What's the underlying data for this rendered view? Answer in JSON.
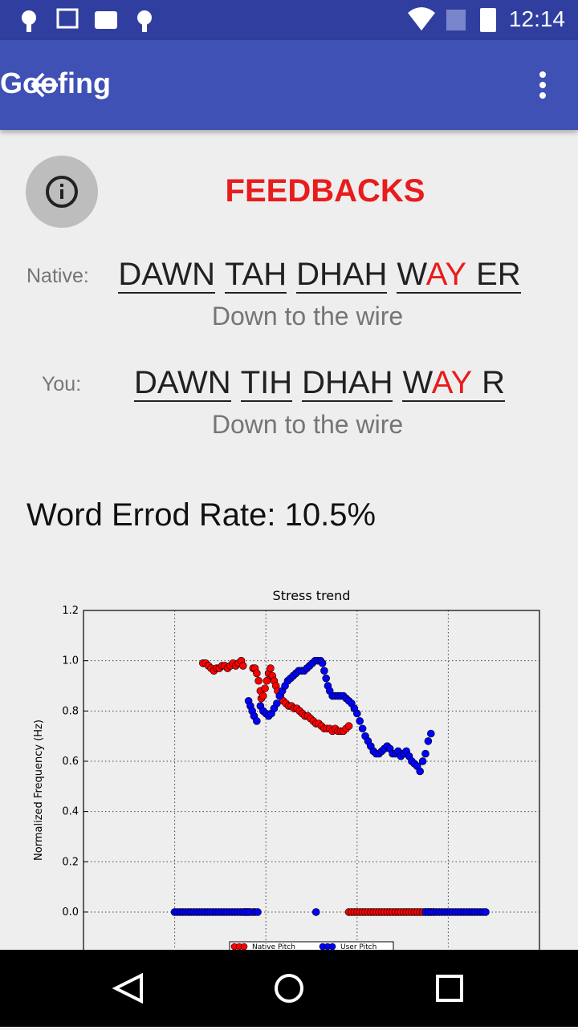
{
  "status_bar": {
    "time": "12:14"
  },
  "app_bar": {
    "title": "Goofing"
  },
  "feedback": {
    "heading": "FEEDBACKS",
    "phrases": [
      {
        "label": "Native:",
        "words": [
          "DAWN",
          "TAH",
          "DHAH"
        ],
        "last": {
          "start": "W",
          "stress": "AY",
          "end": "ER"
        },
        "sentence": "Down to the wire"
      },
      {
        "label": "You:",
        "words": [
          "DAWN",
          "TIH",
          "DHAH"
        ],
        "last": {
          "start": "W",
          "stress": "AY",
          "end": "R"
        },
        "sentence": "Down to the wire"
      }
    ],
    "word_error_rate": "Word Errod Rate: 10.5%"
  },
  "chart_data": {
    "type": "scatter",
    "title": "Stress trend",
    "y_label": "Normalized Frequency (Hz)",
    "xlim": [
      0,
      500
    ],
    "xticks": [
      0,
      100,
      200,
      300,
      400,
      500
    ],
    "ylim": [
      -0.2,
      1.2
    ],
    "yticks": [
      {
        "value": 0,
        "label": "0.0"
      },
      0.2,
      0.4,
      0.6,
      0.8,
      {
        "value": 1,
        "label": "1.0"
      },
      1.2
    ],
    "grid": true,
    "legend": "lower center",
    "series": [
      {
        "name": "Native Pitch",
        "color": "#ff0000",
        "x": [
          131,
          134,
          137,
          140,
          143,
          146,
          149,
          152,
          155,
          158,
          161,
          164,
          167,
          170,
          173,
          175,
          186,
          188,
          190,
          192,
          194,
          195,
          197,
          199,
          201,
          203,
          205,
          207,
          209,
          211,
          213,
          216,
          219,
          222,
          225,
          228,
          231,
          234,
          237,
          240,
          243,
          246,
          249,
          252,
          255,
          258,
          261,
          264,
          267,
          270,
          273,
          276,
          279,
          282,
          285,
          288,
          291,
          177,
          180,
          183,
          186,
          291,
          294,
          297,
          300,
          303,
          306,
          309,
          312,
          315,
          318,
          321,
          324,
          327,
          330,
          333,
          336,
          339,
          342,
          345,
          348,
          351,
          354,
          357,
          360,
          363,
          366,
          369,
          372,
          375,
          378,
          381,
          384
        ],
        "values": [
          0.99,
          0.99,
          0.98,
          0.97,
          0.96,
          0.97,
          0.97,
          0.98,
          0.98,
          0.97,
          0.98,
          0.99,
          0.98,
          0.99,
          1.0,
          0.98,
          0.97,
          0.97,
          0.95,
          0.92,
          0.88,
          0.85,
          0.86,
          0.89,
          0.92,
          0.95,
          0.97,
          0.94,
          0.92,
          0.9,
          0.88,
          0.86,
          0.84,
          0.83,
          0.82,
          0.82,
          0.81,
          0.81,
          0.8,
          0.79,
          0.78,
          0.78,
          0.77,
          0.76,
          0.75,
          0.75,
          0.74,
          0.73,
          0.73,
          0.73,
          0.72,
          0.73,
          0.72,
          0.72,
          0.72,
          0.73,
          0.74,
          0,
          0,
          0,
          0,
          0,
          0,
          0,
          0,
          0,
          0,
          0,
          0,
          0,
          0,
          0,
          0,
          0,
          0,
          0,
          0,
          0,
          0,
          0,
          0,
          0,
          0,
          0,
          0,
          0,
          0,
          0,
          0,
          0,
          0,
          0,
          0
        ]
      },
      {
        "name": "User Pitch",
        "color": "#0000ff",
        "x": [
          181,
          183,
          185,
          187,
          190,
          194,
          197,
          200,
          203,
          206,
          209,
          212,
          215,
          218,
          221,
          224,
          227,
          230,
          233,
          236,
          239,
          242,
          245,
          248,
          251,
          254,
          257,
          260,
          262,
          264,
          266,
          268,
          270,
          273,
          276,
          279,
          282,
          285,
          288,
          291,
          294,
          297,
          300,
          303,
          306,
          309,
          312,
          315,
          318,
          321,
          324,
          327,
          330,
          333,
          336,
          339,
          342,
          345,
          348,
          351,
          354,
          357,
          360,
          363,
          366,
          369,
          372,
          375,
          378,
          381,
          100,
          103,
          106,
          109,
          112,
          115,
          118,
          121,
          124,
          127,
          130,
          133,
          136,
          139,
          142,
          145,
          148,
          151,
          154,
          157,
          160,
          163,
          166,
          169,
          172,
          175,
          178,
          181,
          188,
          191,
          255,
          375,
          378,
          381,
          384,
          387,
          390,
          393,
          396,
          399,
          402,
          405,
          408,
          411,
          414,
          417,
          420,
          423,
          426,
          429,
          432,
          435,
          438,
          441
        ],
        "values": [
          0.84,
          0.82,
          0.8,
          0.78,
          0.76,
          0.82,
          0.8,
          0.79,
          0.78,
          0.79,
          0.81,
          0.83,
          0.86,
          0.88,
          0.9,
          0.92,
          0.93,
          0.94,
          0.95,
          0.96,
          0.96,
          0.96,
          0.97,
          0.98,
          0.99,
          1.0,
          1.0,
          1.0,
          0.99,
          0.96,
          0.93,
          0.9,
          0.88,
          0.86,
          0.86,
          0.86,
          0.86,
          0.86,
          0.85,
          0.84,
          0.83,
          0.81,
          0.79,
          0.76,
          0.73,
          0.7,
          0.68,
          0.66,
          0.64,
          0.63,
          0.63,
          0.64,
          0.65,
          0.66,
          0.65,
          0.63,
          0.63,
          0.64,
          0.62,
          0.63,
          0.64,
          0.62,
          0.6,
          0.59,
          0.58,
          0.56,
          0.6,
          0.63,
          0.68,
          0.71,
          0,
          0,
          0,
          0,
          0,
          0,
          0,
          0,
          0,
          0,
          0,
          0,
          0,
          0,
          0,
          0,
          0,
          0,
          0,
          0,
          0,
          0,
          0,
          0,
          0,
          0,
          0,
          0,
          0,
          0,
          0,
          0,
          0,
          0,
          0,
          0,
          0,
          0,
          0,
          0,
          0,
          0,
          0,
          0,
          0,
          0,
          0,
          0,
          0,
          0,
          0,
          0,
          0,
          0
        ]
      }
    ]
  }
}
